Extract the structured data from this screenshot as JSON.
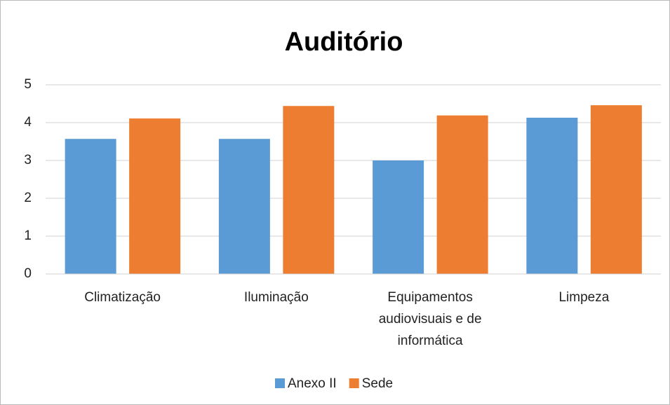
{
  "chart_data": {
    "type": "bar",
    "title": "Auditório",
    "categories": [
      "Climatização",
      "Iluminação",
      "Equipamentos audiovisuais e de informática",
      "Limpeza"
    ],
    "series": [
      {
        "name": "Anexo II",
        "color": "#5b9bd5",
        "values": [
          3.57,
          3.57,
          3.0,
          4.13
        ]
      },
      {
        "name": "Sede",
        "color": "#ed7d31",
        "values": [
          4.11,
          4.44,
          4.19,
          4.46
        ]
      }
    ],
    "ylim": [
      0,
      5
    ],
    "yticks": [
      0,
      1,
      2,
      3,
      4,
      5
    ],
    "grid": true,
    "legend": "bottom"
  }
}
